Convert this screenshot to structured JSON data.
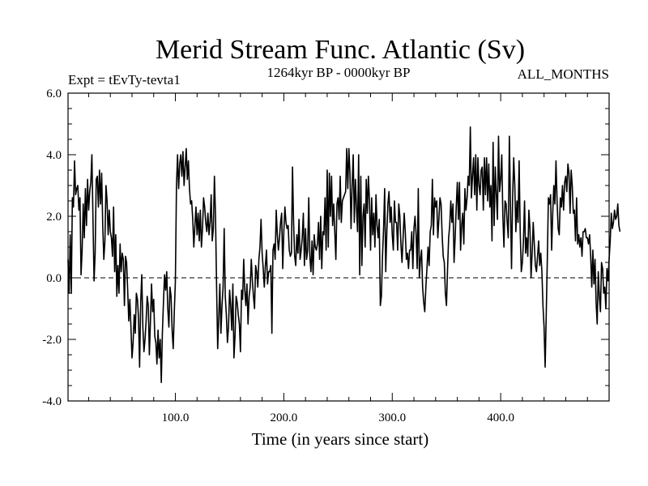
{
  "chart_data": {
    "type": "line",
    "title": "Merid Stream Func. Atlantic (Sv)",
    "experiment_label": "Expt = tEvTy-tevta1",
    "period_label": "1264kyr BP - 0000kyr BP",
    "season_label": "ALL_MONTHS",
    "xlabel": "Time (in years since start)",
    "ylabel": "",
    "xlim": [
      1,
      500
    ],
    "ylim": [
      -4.0,
      6.0
    ],
    "x_ticks": [
      100,
      200,
      300,
      400
    ],
    "x_tick_labels": [
      "100.0",
      "200.0",
      "300.0",
      "400.0"
    ],
    "y_ticks": [
      -4,
      -2,
      0,
      2,
      4,
      6
    ],
    "y_tick_labels": [
      "-4.0",
      "-2.0",
      "0.0",
      "2.0",
      "4.0",
      "6.0"
    ],
    "reference_line": {
      "y": 0.0,
      "style": "dashed"
    },
    "grid": false,
    "series": [
      {
        "name": "Merid Stream Func. Atlantic",
        "x_start": 1,
        "x_step": 1,
        "values": [
          0.6,
          -0.5,
          1.4,
          -0.5,
          2.6,
          2.3,
          3.8,
          2.7,
          2.9,
          3.0,
          2.2,
          2.6,
          0.1,
          0.9,
          2.4,
          1.3,
          2.9,
          1.7,
          3.2,
          2.2,
          2.8,
          3.1,
          4.0,
          1.9,
          -0.1,
          0.8,
          3.2,
          3.3,
          2.3,
          3.5,
          2.4,
          3.4,
          1.7,
          0.6,
          1.2,
          3.0,
          2.5,
          1.4,
          2.2,
          1.5,
          1.3,
          0.7,
          2.3,
          0.2,
          1.4,
          -0.6,
          0.4,
          -0.5,
          1.1,
          0.2,
          0.8,
          0.6,
          -0.9,
          0.7,
          0.5,
          -0.4,
          -1.4,
          -0.7,
          -1.6,
          -2.6,
          -2.1,
          -1.2,
          -1.8,
          -0.5,
          -0.7,
          -1.3,
          -2.9,
          -0.8,
          0.1,
          -1.6,
          -2.4,
          -2.0,
          -1.4,
          -0.6,
          -0.9,
          -2.5,
          -1.4,
          -0.2,
          -1.1,
          -0.7,
          -1.9,
          -2.1,
          -2.8,
          -1.7,
          -2.6,
          -2.0,
          -3.4,
          -1.8,
          -0.8,
          0.1,
          -0.4,
          0.2,
          -1.0,
          -1.6,
          -0.3,
          -0.6,
          -1.7,
          -2.3,
          -1.1,
          -0.1,
          3.0,
          4.0,
          2.9,
          3.7,
          4.0,
          3.3,
          4.1,
          3.0,
          3.6,
          4.2,
          3.2,
          3.8,
          2.9,
          2.4,
          2.5,
          1.9,
          1.0,
          1.7,
          2.3,
          1.4,
          2.1,
          1.2,
          2.2,
          1.0,
          1.6,
          2.6,
          2.3,
          1.8,
          1.5,
          2.1,
          1.4,
          1.8,
          2.7,
          1.2,
          1.6,
          3.3,
          2.0,
          -0.3,
          -2.3,
          -1.3,
          -0.2,
          -1.8,
          -0.9,
          -0.3,
          1.6,
          -0.6,
          -1.2,
          -2.1,
          -1.6,
          -0.4,
          -0.9,
          -1.7,
          -0.2,
          -2.6,
          -1.9,
          -0.6,
          -0.8,
          -1.2,
          -1.5,
          -2.4,
          -0.4,
          -0.7,
          0.6,
          -0.4,
          -0.9,
          -0.2,
          -1.5,
          -0.6,
          -0.3,
          0.6,
          -0.1,
          -0.6,
          -1.0,
          0.4,
          0.2,
          -0.3,
          0.6,
          1.0,
          1.9,
          0.8,
          0.3,
          -0.3,
          0.4,
          0.9,
          -0.2,
          0.2,
          0.2,
          0.4,
          -1.8,
          0.9,
          1.1,
          0.6,
          2.2,
          1.4,
          0.9,
          1.3,
          1.8,
          2.1,
          0.3,
          1.5,
          2.3,
          1.8,
          1.6,
          1.7,
          0.9,
          0.7,
          0.8,
          3.6,
          1.8,
          0.7,
          0.4,
          1.4,
          0.8,
          1.9,
          0.6,
          0.9,
          1.3,
          2.1,
          0.4,
          1.6,
          0.6,
          0.9,
          2.6,
          0.7,
          0.2,
          1.2,
          0.1,
          1.4,
          1.0,
          0.9,
          1.1,
          1.8,
          0.6,
          2.0,
          0.3,
          1.5,
          1.4,
          2.6,
          0.9,
          3.5,
          1.0,
          3.4,
          2.0,
          3.3,
          1.7,
          2.4,
          1.5,
          0.6,
          2.4,
          2.6,
          1.9,
          3.3,
          1.8,
          2.5,
          2.6,
          2.7,
          2.8,
          4.2,
          2.9,
          4.2,
          3.4,
          1.6,
          3.0,
          4.0,
          1.8,
          3.2,
          2.3,
          1.5,
          4.0,
          0.1,
          3.3,
          0.4,
          2.0,
          2.4,
          1.0,
          3.2,
          2.1,
          3.3,
          2.5,
          0.9,
          2.6,
          1.4,
          2.1,
          1.0,
          2.7,
          1.7,
          1.3,
          1.9,
          -0.9,
          -0.6,
          0.7,
          1.6,
          2.9,
          0.2,
          1.5,
          2.4,
          2.8,
          1.8,
          2.3,
          1.4,
          0.9,
          2.5,
          1.8,
          1.8,
          0.9,
          2.4,
          2.0,
          1.1,
          0.5,
          1.3,
          2.1,
          1.5,
          0.6,
          0.8,
          0.3,
          0.9,
          0.9,
          1.5,
          0.3,
          1.6,
          2.0,
          1.4,
          0.3,
          2.9,
          0.0,
          0.6,
          0.9,
          -0.3,
          -0.8,
          -1.1,
          -0.3,
          0.3,
          1.0,
          0.4,
          1.5,
          1.7,
          3.2,
          1.4,
          2.6,
          2.3,
          2.5,
          1.3,
          1.9,
          2.6,
          2.4,
          1.4,
          0.7,
          0.5,
          -0.5,
          -0.9,
          0.3,
          1.3,
          1.7,
          2.5,
          1.8,
          2.4,
          0.5,
          1.3,
          2.3,
          3.1,
          1.9,
          3.1,
          0.9,
          1.7,
          2.1,
          1.1,
          2.9,
          2.2,
          2.6,
          3.3,
          3.0,
          4.9,
          2.6,
          3.3,
          3.9,
          2.7,
          4.0,
          2.2,
          3.9,
          3.0,
          2.7,
          3.5,
          3.6,
          2.2,
          3.9,
          2.7,
          3.9,
          2.5,
          3.7,
          2.3,
          3.0,
          1.2,
          4.4,
          1.7,
          3.6,
          2.7,
          1.9,
          4.6,
          2.8,
          3.2,
          4.0,
          2.0,
          1.0,
          2.5,
          2.4,
          1.8,
          1.3,
          4.6,
          2.4,
          0.3,
          2.6,
          3.9,
          3.0,
          1.5,
          2.5,
          1.8,
          3.8,
          1.5,
          0.2,
          0.5,
          1.2,
          2.5,
          0.8,
          1.3,
          0.7,
          2.2,
          1.6,
          0.0,
          0.8,
          1.8,
          1.1,
          0.4,
          0.2,
          0.7,
          1.2,
          0.4,
          0.8,
          0.2,
          -0.9,
          -1.6,
          -2.9,
          -1.2,
          0.6,
          2.6,
          2.4,
          2.7,
          0.9,
          2.1,
          3.0,
          2.4,
          3.8,
          2.5,
          1.6,
          1.4,
          2.6,
          2.3,
          3.0,
          2.2,
          3.1,
          3.3,
          2.8,
          3.7,
          3.4,
          2.1,
          3.5,
          3.0,
          2.1,
          2.2,
          1.2,
          2.6,
          1.1,
          1.4,
          1.0,
          1.3,
          0.7,
          1.5,
          1.5,
          1.6,
          1.3,
          1.3,
          1.1,
          1.4,
          0.7,
          -0.3,
          0.9,
          -0.2,
          0.6,
          -0.8,
          -1.5,
          0.2,
          -0.6,
          -1.1,
          0.5,
          0.3,
          -0.5,
          -0.3,
          -1.0,
          0.3,
          -0.1,
          0.6,
          1.2,
          2.1,
          1.6,
          1.8,
          2.2,
          1.9,
          2.0,
          2.4,
          1.7,
          1.5
        ]
      }
    ]
  }
}
